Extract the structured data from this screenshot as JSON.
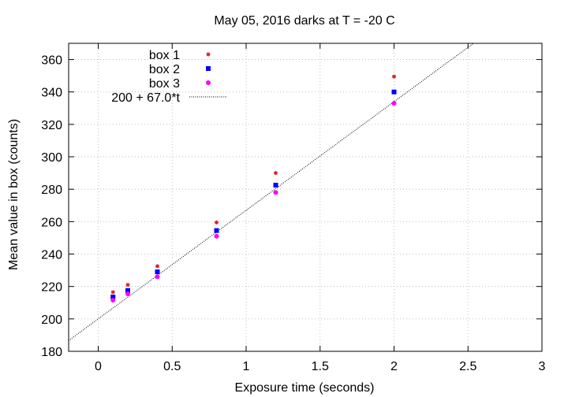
{
  "chart_data": {
    "type": "scatter",
    "title": "May 05, 2016 darks at T = -20 C",
    "xlabel": "Exposure time (seconds)",
    "ylabel": "Mean value in box (counts)",
    "xlim": [
      -0.2,
      3.0
    ],
    "ylim": [
      180,
      370
    ],
    "x_ticks": [
      0,
      0.5,
      1,
      1.5,
      2,
      2.5,
      3
    ],
    "x_tick_labels": [
      "0",
      "0.5",
      "1",
      "1.5",
      "2",
      "2.5",
      "3"
    ],
    "y_ticks": [
      180,
      200,
      220,
      240,
      260,
      280,
      300,
      320,
      340,
      360
    ],
    "y_tick_labels": [
      "180",
      "200",
      "220",
      "240",
      "260",
      "280",
      "300",
      "320",
      "340",
      "360"
    ],
    "grid": true,
    "legend_position": "top-left",
    "series": [
      {
        "name": "box 1",
        "color": "#e41a1c",
        "marker": "star",
        "x": [
          0.1,
          0.2,
          0.4,
          0.8,
          1.2,
          2.0
        ],
        "y": [
          216.5,
          221,
          232.5,
          259.5,
          290,
          349.5
        ]
      },
      {
        "name": "box 2",
        "color": "#0000ff",
        "marker": "square",
        "x": [
          0.1,
          0.2,
          0.4,
          0.8,
          1.2,
          2.0
        ],
        "y": [
          213.5,
          217.5,
          229,
          254.5,
          282.5,
          340
        ]
      },
      {
        "name": "box 3",
        "color": "#ff00ff",
        "marker": "circle",
        "x": [
          0.1,
          0.2,
          0.4,
          0.8,
          1.2,
          2.0
        ],
        "y": [
          211.5,
          215.5,
          226,
          251,
          278,
          333
        ]
      }
    ],
    "fit": {
      "name": "200 + 67.0*t",
      "intercept": 200,
      "slope": 67.0,
      "color": "#000000",
      "style": "dotted"
    }
  }
}
